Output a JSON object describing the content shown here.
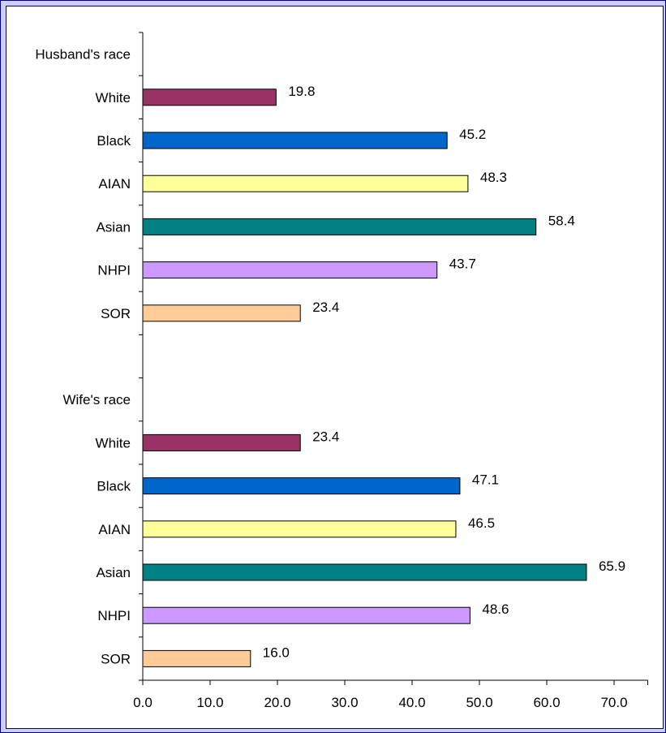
{
  "chart_data": {
    "type": "bar",
    "orientation": "horizontal",
    "title": "",
    "xlabel": "",
    "ylabel": "",
    "xlim": [
      0,
      75
    ],
    "x_ticks": [
      "0.0",
      "10.0",
      "20.0",
      "30.0",
      "40.0",
      "50.0",
      "60.0",
      "70.0"
    ],
    "grid": false,
    "legend": "none",
    "groups": [
      {
        "label": "Husband's race",
        "categories": [
          "White",
          "Black",
          "AIAN",
          "Asian",
          "NHPI",
          "SOR"
        ],
        "values": [
          19.8,
          45.2,
          48.3,
          58.4,
          43.7,
          23.4
        ],
        "value_labels": [
          "19.8",
          "45.2",
          "48.3",
          "58.4",
          "43.7",
          "23.4"
        ]
      },
      {
        "label": "Wife's race",
        "categories": [
          "White",
          "Black",
          "AIAN",
          "Asian",
          "NHPI",
          "SOR"
        ],
        "values": [
          23.4,
          47.1,
          46.5,
          65.9,
          48.6,
          16.0
        ],
        "value_labels": [
          "23.4",
          "47.1",
          "46.5",
          "65.9",
          "48.6",
          "16.0"
        ]
      }
    ],
    "colors": [
      "#993366",
      "#0066cc",
      "#ffff99",
      "#008080",
      "#cc99ff",
      "#ffcc99"
    ]
  }
}
